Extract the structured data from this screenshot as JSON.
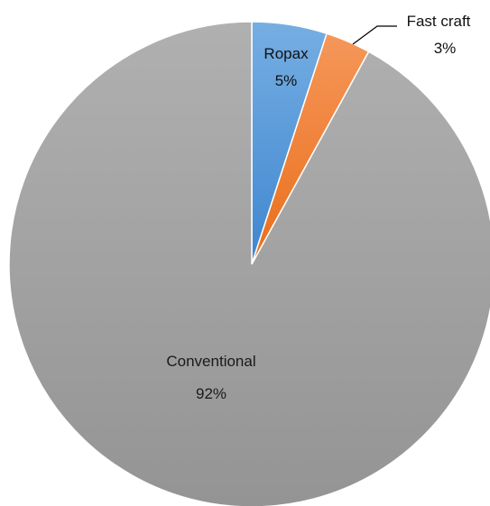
{
  "chart_data": {
    "type": "pie",
    "slices": [
      {
        "label": "Ropax",
        "value": 5,
        "value_label": "5%",
        "color": "#5b9bd5"
      },
      {
        "label": "Fast craft",
        "value": 3,
        "value_label": "3%",
        "color": "#ed7d31"
      },
      {
        "label": "Conventional",
        "value": 92,
        "value_label": "92%",
        "color": "#a5a5a5"
      }
    ],
    "title": "",
    "legend": "none",
    "start_angle": "12 o'clock",
    "direction": "clockwise"
  }
}
